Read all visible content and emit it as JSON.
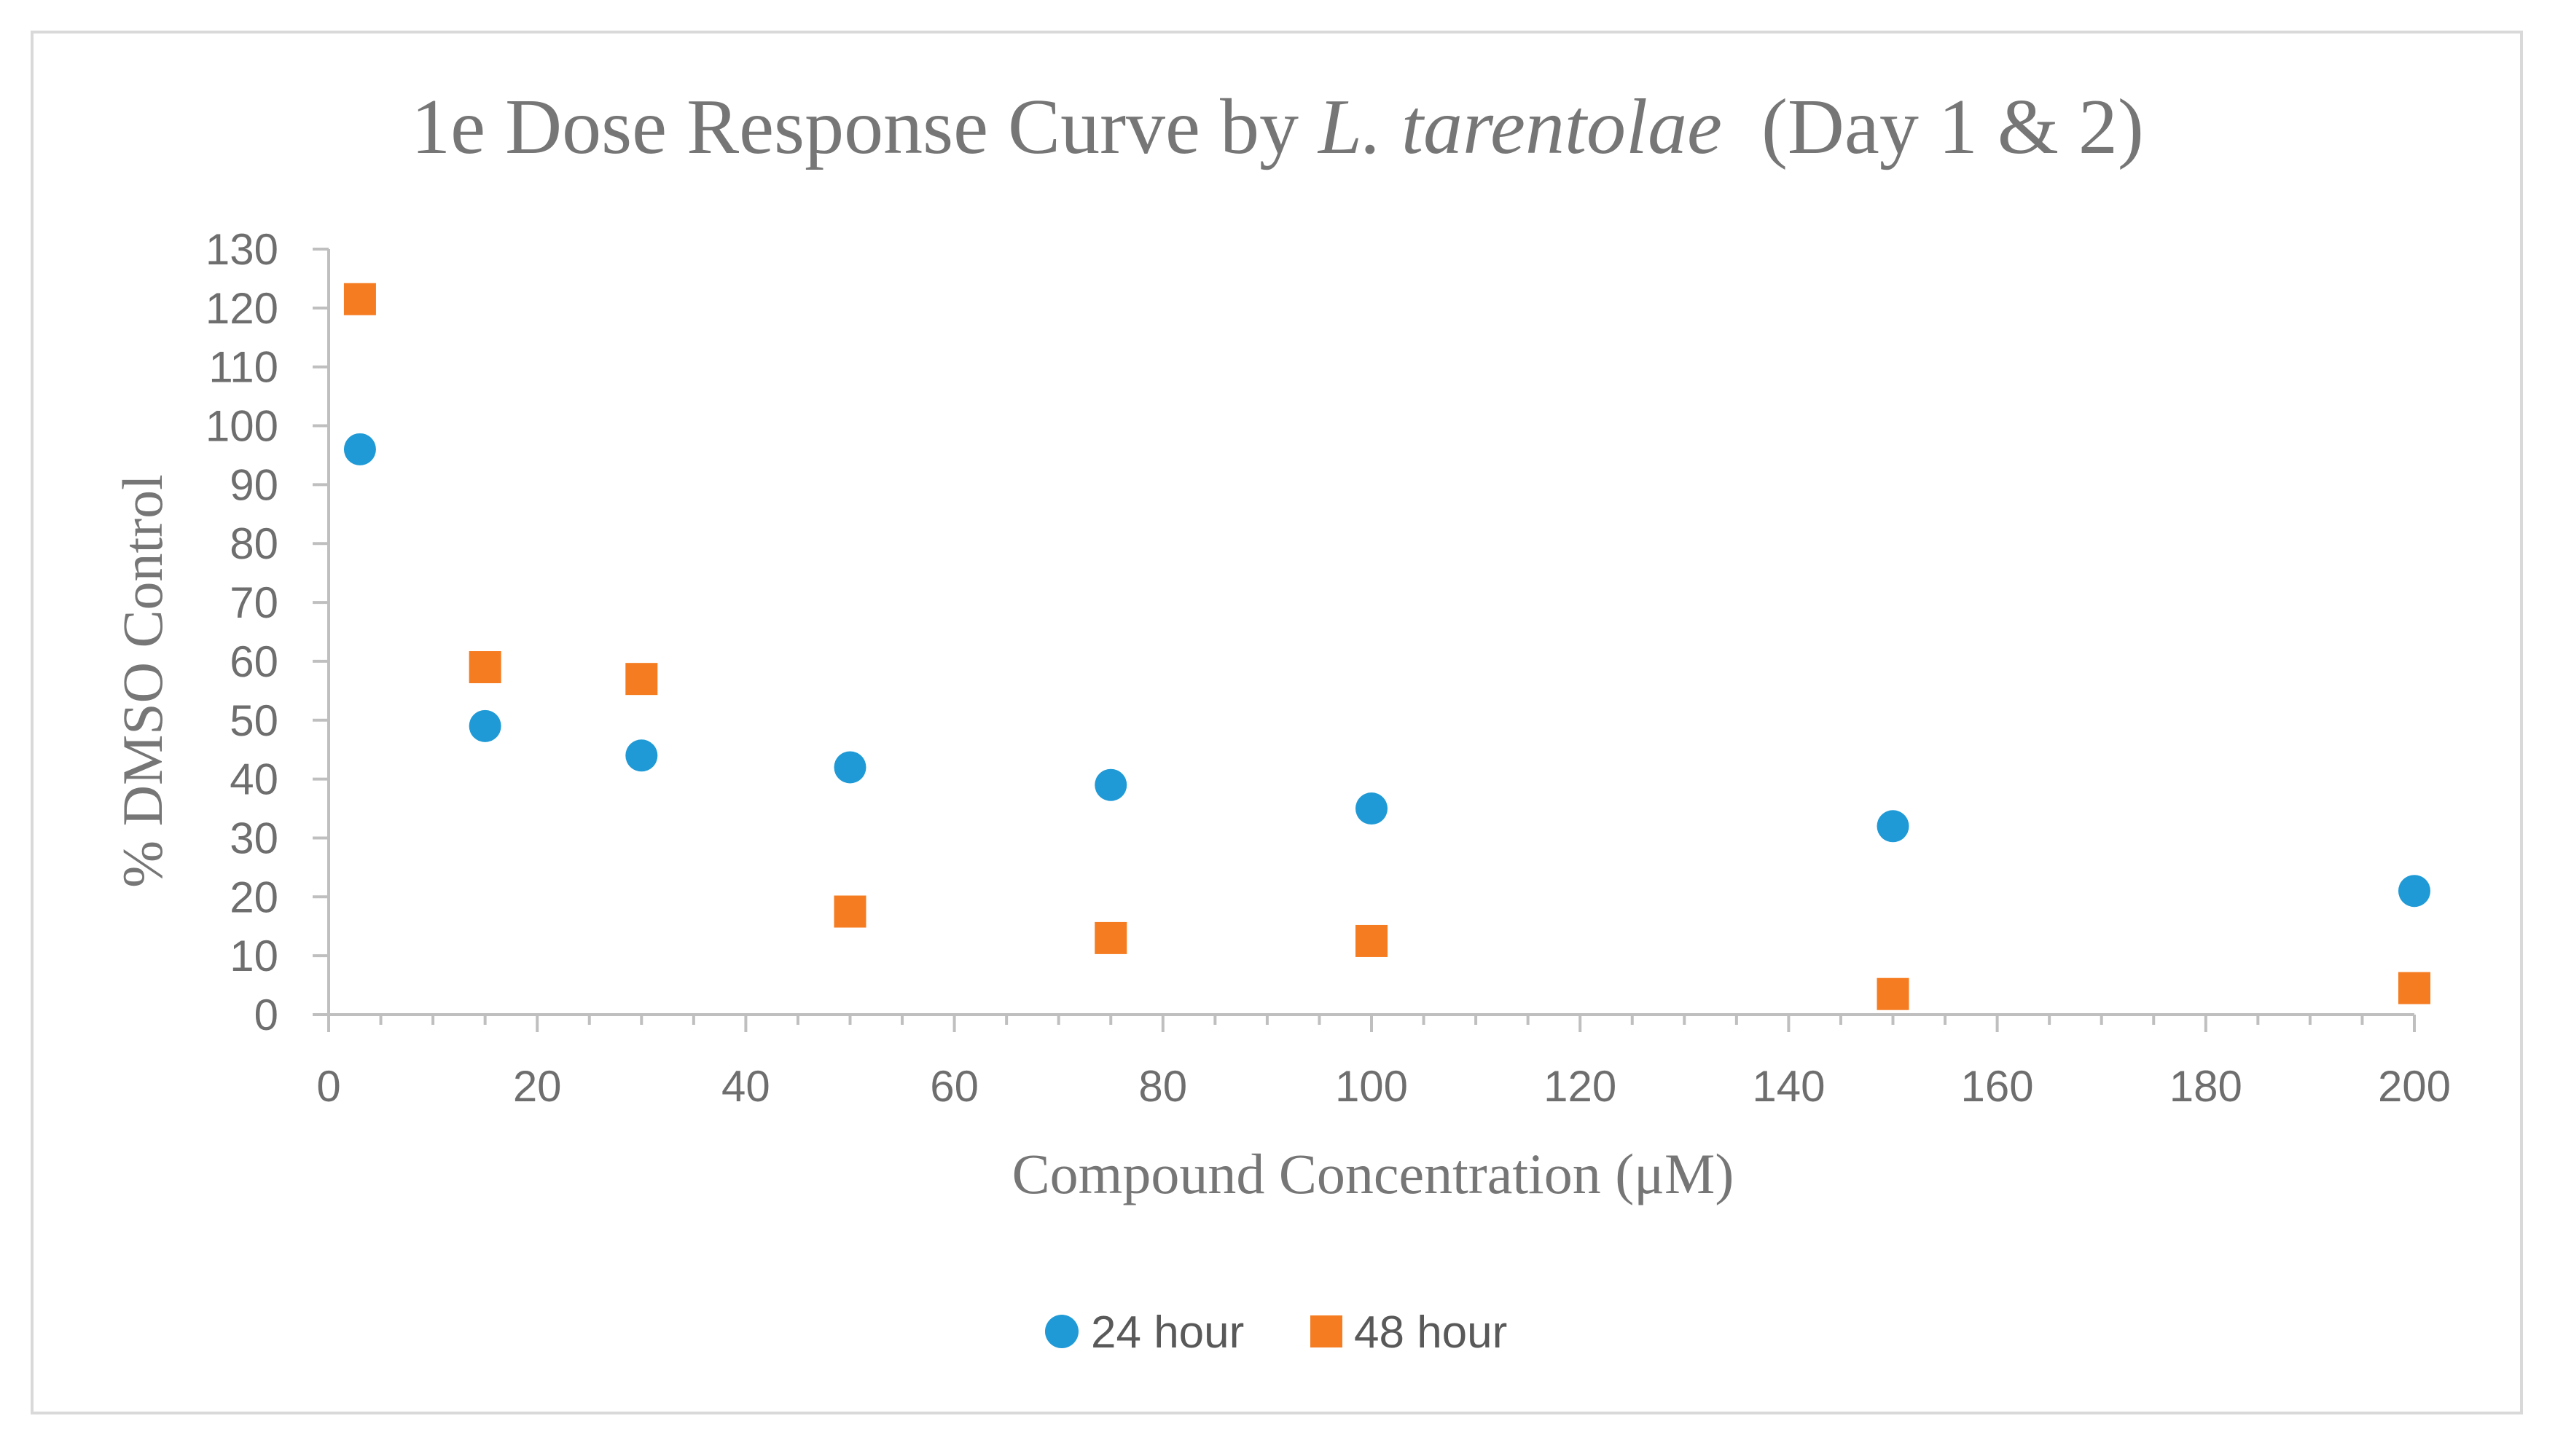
{
  "chart_data": {
    "type": "scatter",
    "title": {
      "prefix": "1e Dose Response Curve by ",
      "italic": "L. tarentolae",
      "suffix": "  (Day 1 & 2)"
    },
    "xlabel": "Compound Concentration (μM)",
    "ylabel": "% DMSO Control",
    "xlim": [
      0,
      200
    ],
    "ylim": [
      0,
      130
    ],
    "x_major_step": 20,
    "x_minor_step": 5,
    "y_major_step": 10,
    "grid": false,
    "legend_position": "bottom",
    "series": [
      {
        "name": "24 hour",
        "marker": "circle",
        "color": "#1f9ad6",
        "x": [
          3,
          15,
          30,
          50,
          75,
          100,
          150,
          200
        ],
        "y": [
          96,
          49,
          44,
          42,
          39,
          35,
          32,
          21
        ]
      },
      {
        "name": "48 hour",
        "marker": "square",
        "color": "#f57c20",
        "x": [
          3,
          15,
          30,
          50,
          75,
          100,
          150,
          200
        ],
        "y": [
          121.5,
          59,
          57,
          17.5,
          13,
          12.5,
          3.5,
          4.5
        ]
      }
    ]
  }
}
